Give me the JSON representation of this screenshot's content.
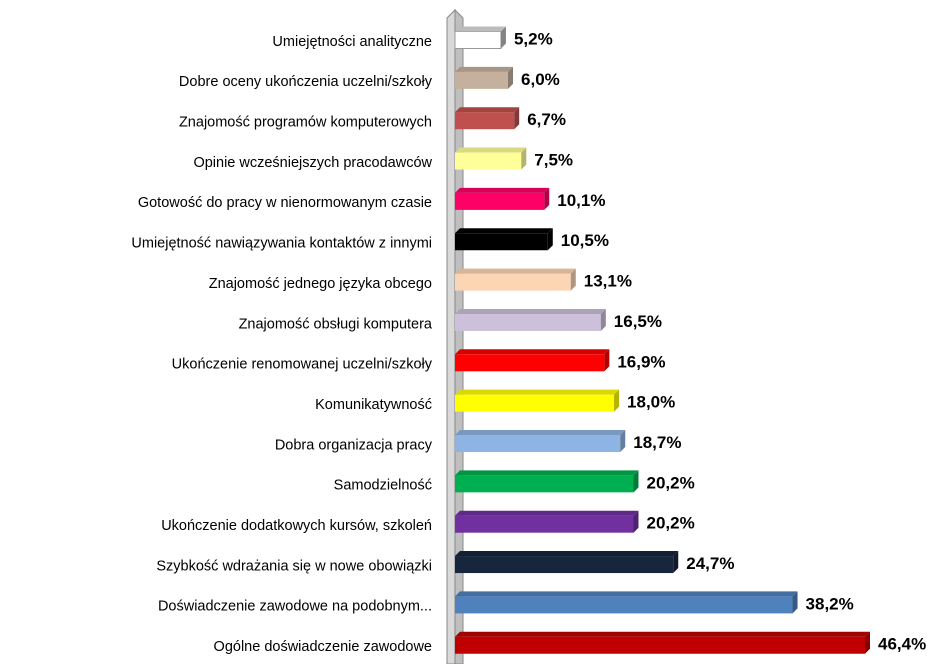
{
  "chart_data": {
    "type": "bar",
    "orientation": "horizontal",
    "categories": [
      "Umiejętności analityczne",
      "Dobre oceny ukończenia uczelni/szkoły",
      "Znajomość programów komputerowych",
      "Opinie wcześniejszych pracodawców",
      "Gotowość do pracy w nienormowanym czasie",
      "Umiejętność nawiązywania kontaktów z innymi",
      "Znajomość jednego języka obcego",
      "Znajomość obsługi komputera",
      "Ukończenie renomowanej uczelni/szkoły",
      "Komunikatywność",
      "Dobra organizacja pracy",
      "Samodzielność",
      "Ukończenie dodatkowych kursów, szkoleń",
      "Szybkość wdrażania się w nowe obowiązki",
      "Doświadczenie zawodowe na podobnym...",
      "Ogólne doświadczenie zawodowe"
    ],
    "values": [
      5.2,
      6.0,
      6.7,
      7.5,
      10.1,
      10.5,
      13.1,
      16.5,
      16.9,
      18.0,
      18.7,
      20.2,
      20.2,
      24.7,
      38.2,
      46.4
    ],
    "value_labels": [
      "5,2%",
      "6,0%",
      "6,7%",
      "7,5%",
      "10,1%",
      "10,5%",
      "13,1%",
      "16,5%",
      "16,9%",
      "18,0%",
      "18,7%",
      "20,2%",
      "20,2%",
      "24,7%",
      "38,2%",
      "46,4%"
    ],
    "colors": [
      "#ffffff",
      "#c4b09c",
      "#c0504d",
      "#ffff99",
      "#ff0066",
      "#000000",
      "#fcd5b4",
      "#ccc0da",
      "#ff0000",
      "#ffff00",
      "#8db4e2",
      "#00b050",
      "#7030a0",
      "#17253d",
      "#4f81bd",
      "#c00000"
    ]
  }
}
